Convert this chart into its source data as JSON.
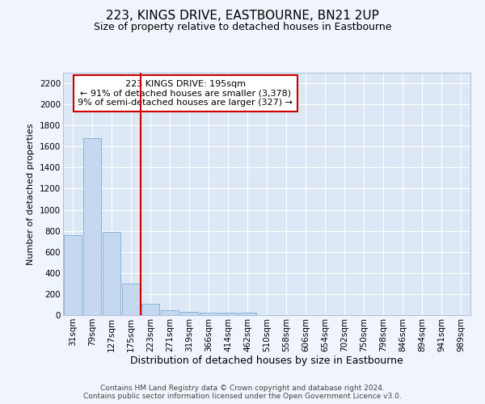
{
  "title": "223, KINGS DRIVE, EASTBOURNE, BN21 2UP",
  "subtitle": "Size of property relative to detached houses in Eastbourne",
  "xlabel": "Distribution of detached houses by size in Eastbourne",
  "ylabel": "Number of detached properties",
  "categories": [
    "31sqm",
    "79sqm",
    "127sqm",
    "175sqm",
    "223sqm",
    "271sqm",
    "319sqm",
    "366sqm",
    "414sqm",
    "462sqm",
    "510sqm",
    "558sqm",
    "606sqm",
    "654sqm",
    "702sqm",
    "750sqm",
    "798sqm",
    "846sqm",
    "894sqm",
    "941sqm",
    "989sqm"
  ],
  "values": [
    760,
    1680,
    790,
    300,
    110,
    45,
    30,
    22,
    20,
    20,
    0,
    0,
    0,
    0,
    0,
    0,
    0,
    0,
    0,
    0,
    0
  ],
  "bar_color": "#c5d8f0",
  "bar_edge_color": "#7bafd4",
  "vline_x_index": 3.5,
  "vline_color": "#cc0000",
  "ylim": [
    0,
    2300
  ],
  "yticks": [
    0,
    200,
    400,
    600,
    800,
    1000,
    1200,
    1400,
    1600,
    1800,
    2000,
    2200
  ],
  "annotation_title": "223 KINGS DRIVE: 195sqm",
  "annotation_line1": "← 91% of detached houses are smaller (3,378)",
  "annotation_line2": "9% of semi-detached houses are larger (327) →",
  "annotation_box_color": "#cc0000",
  "fig_bg_color": "#f0f4fc",
  "plot_bg_color": "#dce8f5",
  "grid_color": "#ffffff",
  "footer_line1": "Contains HM Land Registry data © Crown copyright and database right 2024.",
  "footer_line2": "Contains public sector information licensed under the Open Government Licence v3.0.",
  "title_fontsize": 11,
  "subtitle_fontsize": 9,
  "ylabel_fontsize": 8,
  "xlabel_fontsize": 9,
  "tick_fontsize": 7.5,
  "annotation_fontsize": 8,
  "footer_fontsize": 6.5
}
